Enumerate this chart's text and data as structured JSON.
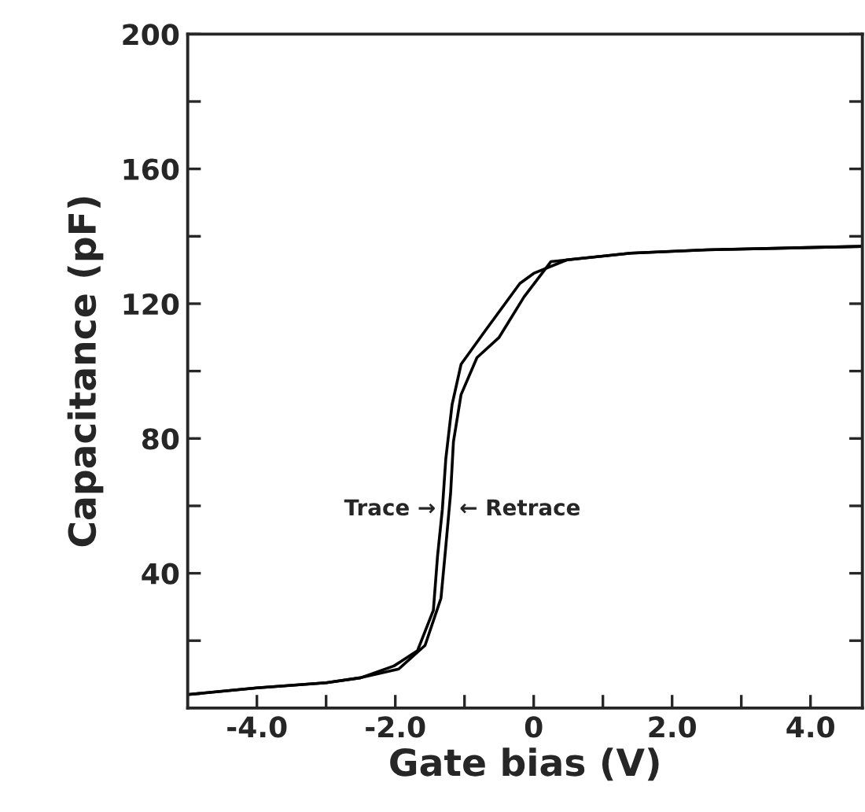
{
  "chart_data": {
    "type": "line",
    "xlabel": "Gate bias (V)",
    "ylabel": "Capacitance (pF)",
    "xlim": [
      -5,
      4.75
    ],
    "ylim": [
      0,
      200
    ],
    "xticks": [
      {
        "value": -4,
        "label": "-4.0"
      },
      {
        "value": -3,
        "label": null
      },
      {
        "value": -2,
        "label": "-2.0"
      },
      {
        "value": -1,
        "label": null
      },
      0,
      {
        "value": 1,
        "label": null
      },
      {
        "value": 2,
        "label": "2.0"
      },
      {
        "value": 3,
        "label": null
      },
      {
        "value": 4,
        "label": "4.0"
      }
    ],
    "yticks": [
      {
        "value": 20,
        "label": null
      },
      40,
      {
        "value": 60,
        "label": null
      },
      80,
      {
        "value": 100,
        "label": null
      },
      120,
      {
        "value": 140,
        "label": null
      },
      160,
      {
        "value": 180,
        "label": null
      },
      200
    ],
    "marker": "none",
    "line_style": "solid",
    "series": [
      {
        "color": "#000000",
        "x": [
          -5,
          -4,
          -3,
          -2.5,
          -2.02,
          -1.68,
          -1.45,
          -1.39,
          -1.32,
          -1.27,
          -1.18,
          -1.05,
          -0.7,
          -0.2,
          0,
          0.48,
          1.4,
          2.5,
          4.75
        ],
        "values": [
          4,
          6,
          7.5,
          9,
          12.5,
          17,
          29,
          45,
          59,
          74,
          90,
          102,
          112,
          126,
          129,
          133,
          135,
          136,
          137
        ]
      },
      {
        "color": "#000000",
        "x": [
          -5,
          -4,
          -3,
          -2.5,
          -1.95,
          -1.57,
          -1.34,
          -1.27,
          -1.2,
          -1.16,
          -1.05,
          -0.82,
          -0.5,
          -0.14,
          0.25,
          1.4,
          2.5,
          4.75
        ],
        "values": [
          4,
          6,
          7.5,
          9,
          11.6,
          18.6,
          32.6,
          48,
          64,
          79,
          93,
          104,
          110,
          122,
          132.5,
          135,
          136,
          137
        ]
      }
    ],
    "annotations": [
      {
        "text": "Trace →",
        "x": -1.32,
        "y": 59
      },
      {
        "text": "← Retrace",
        "x": -1.2,
        "y": 59
      }
    ]
  }
}
